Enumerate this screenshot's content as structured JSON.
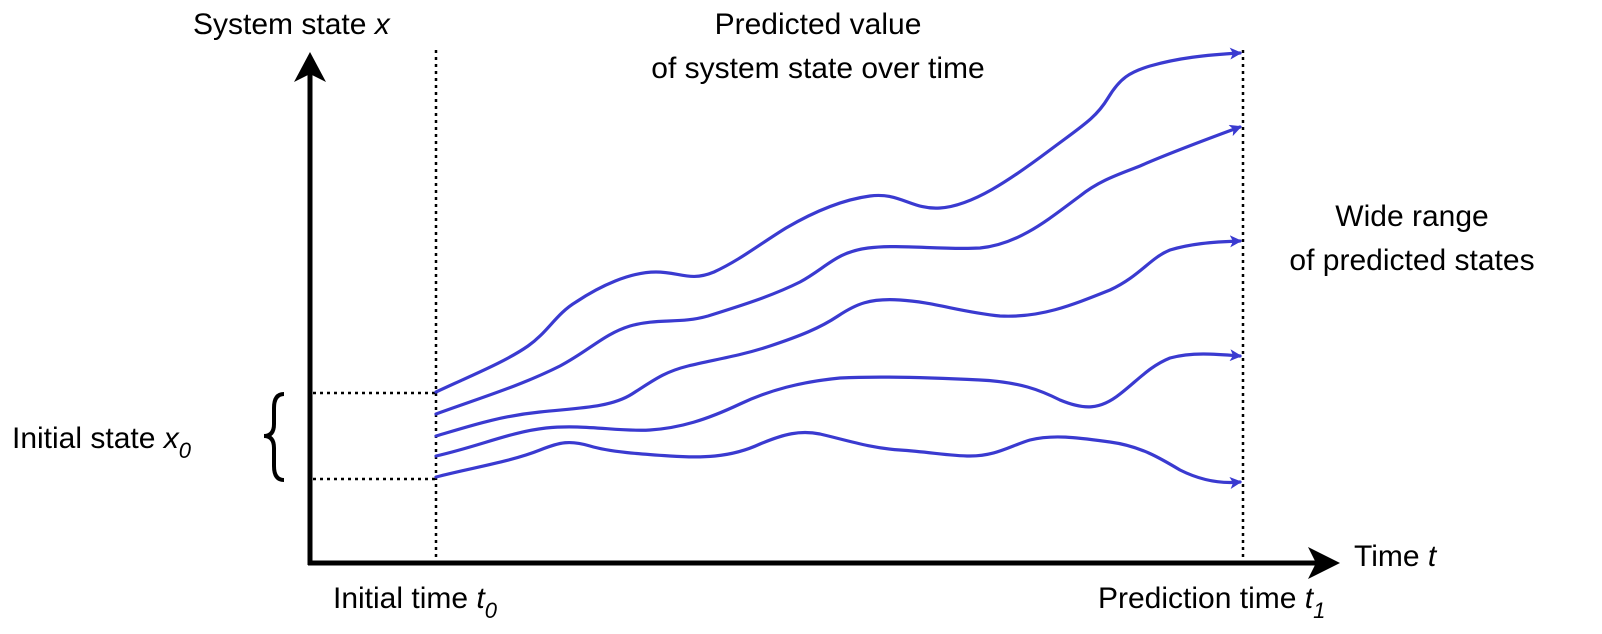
{
  "labels": {
    "y_axis": {
      "text": "System state ",
      "var": "x"
    },
    "x_axis": {
      "text": "Time ",
      "var": "t"
    },
    "title_line1": "Predicted value",
    "title_line2": "of system state over time",
    "range_line1": "Wide range",
    "range_line2": "of predicted states",
    "initial_state": {
      "text": "Initial state ",
      "var": "x",
      "sub": "0"
    },
    "initial_time": {
      "text": "Initial time ",
      "var": "t",
      "sub": "0"
    },
    "prediction_time": {
      "text": "Prediction time ",
      "var": "t",
      "sub": "1"
    }
  },
  "colors": {
    "trajectory": "#3a3ad0",
    "axis": "#000000",
    "guide": "#000000"
  },
  "trajectories": [
    {
      "name": "trajectory-1"
    },
    {
      "name": "trajectory-2"
    },
    {
      "name": "trajectory-3"
    },
    {
      "name": "trajectory-4"
    },
    {
      "name": "trajectory-5"
    }
  ]
}
